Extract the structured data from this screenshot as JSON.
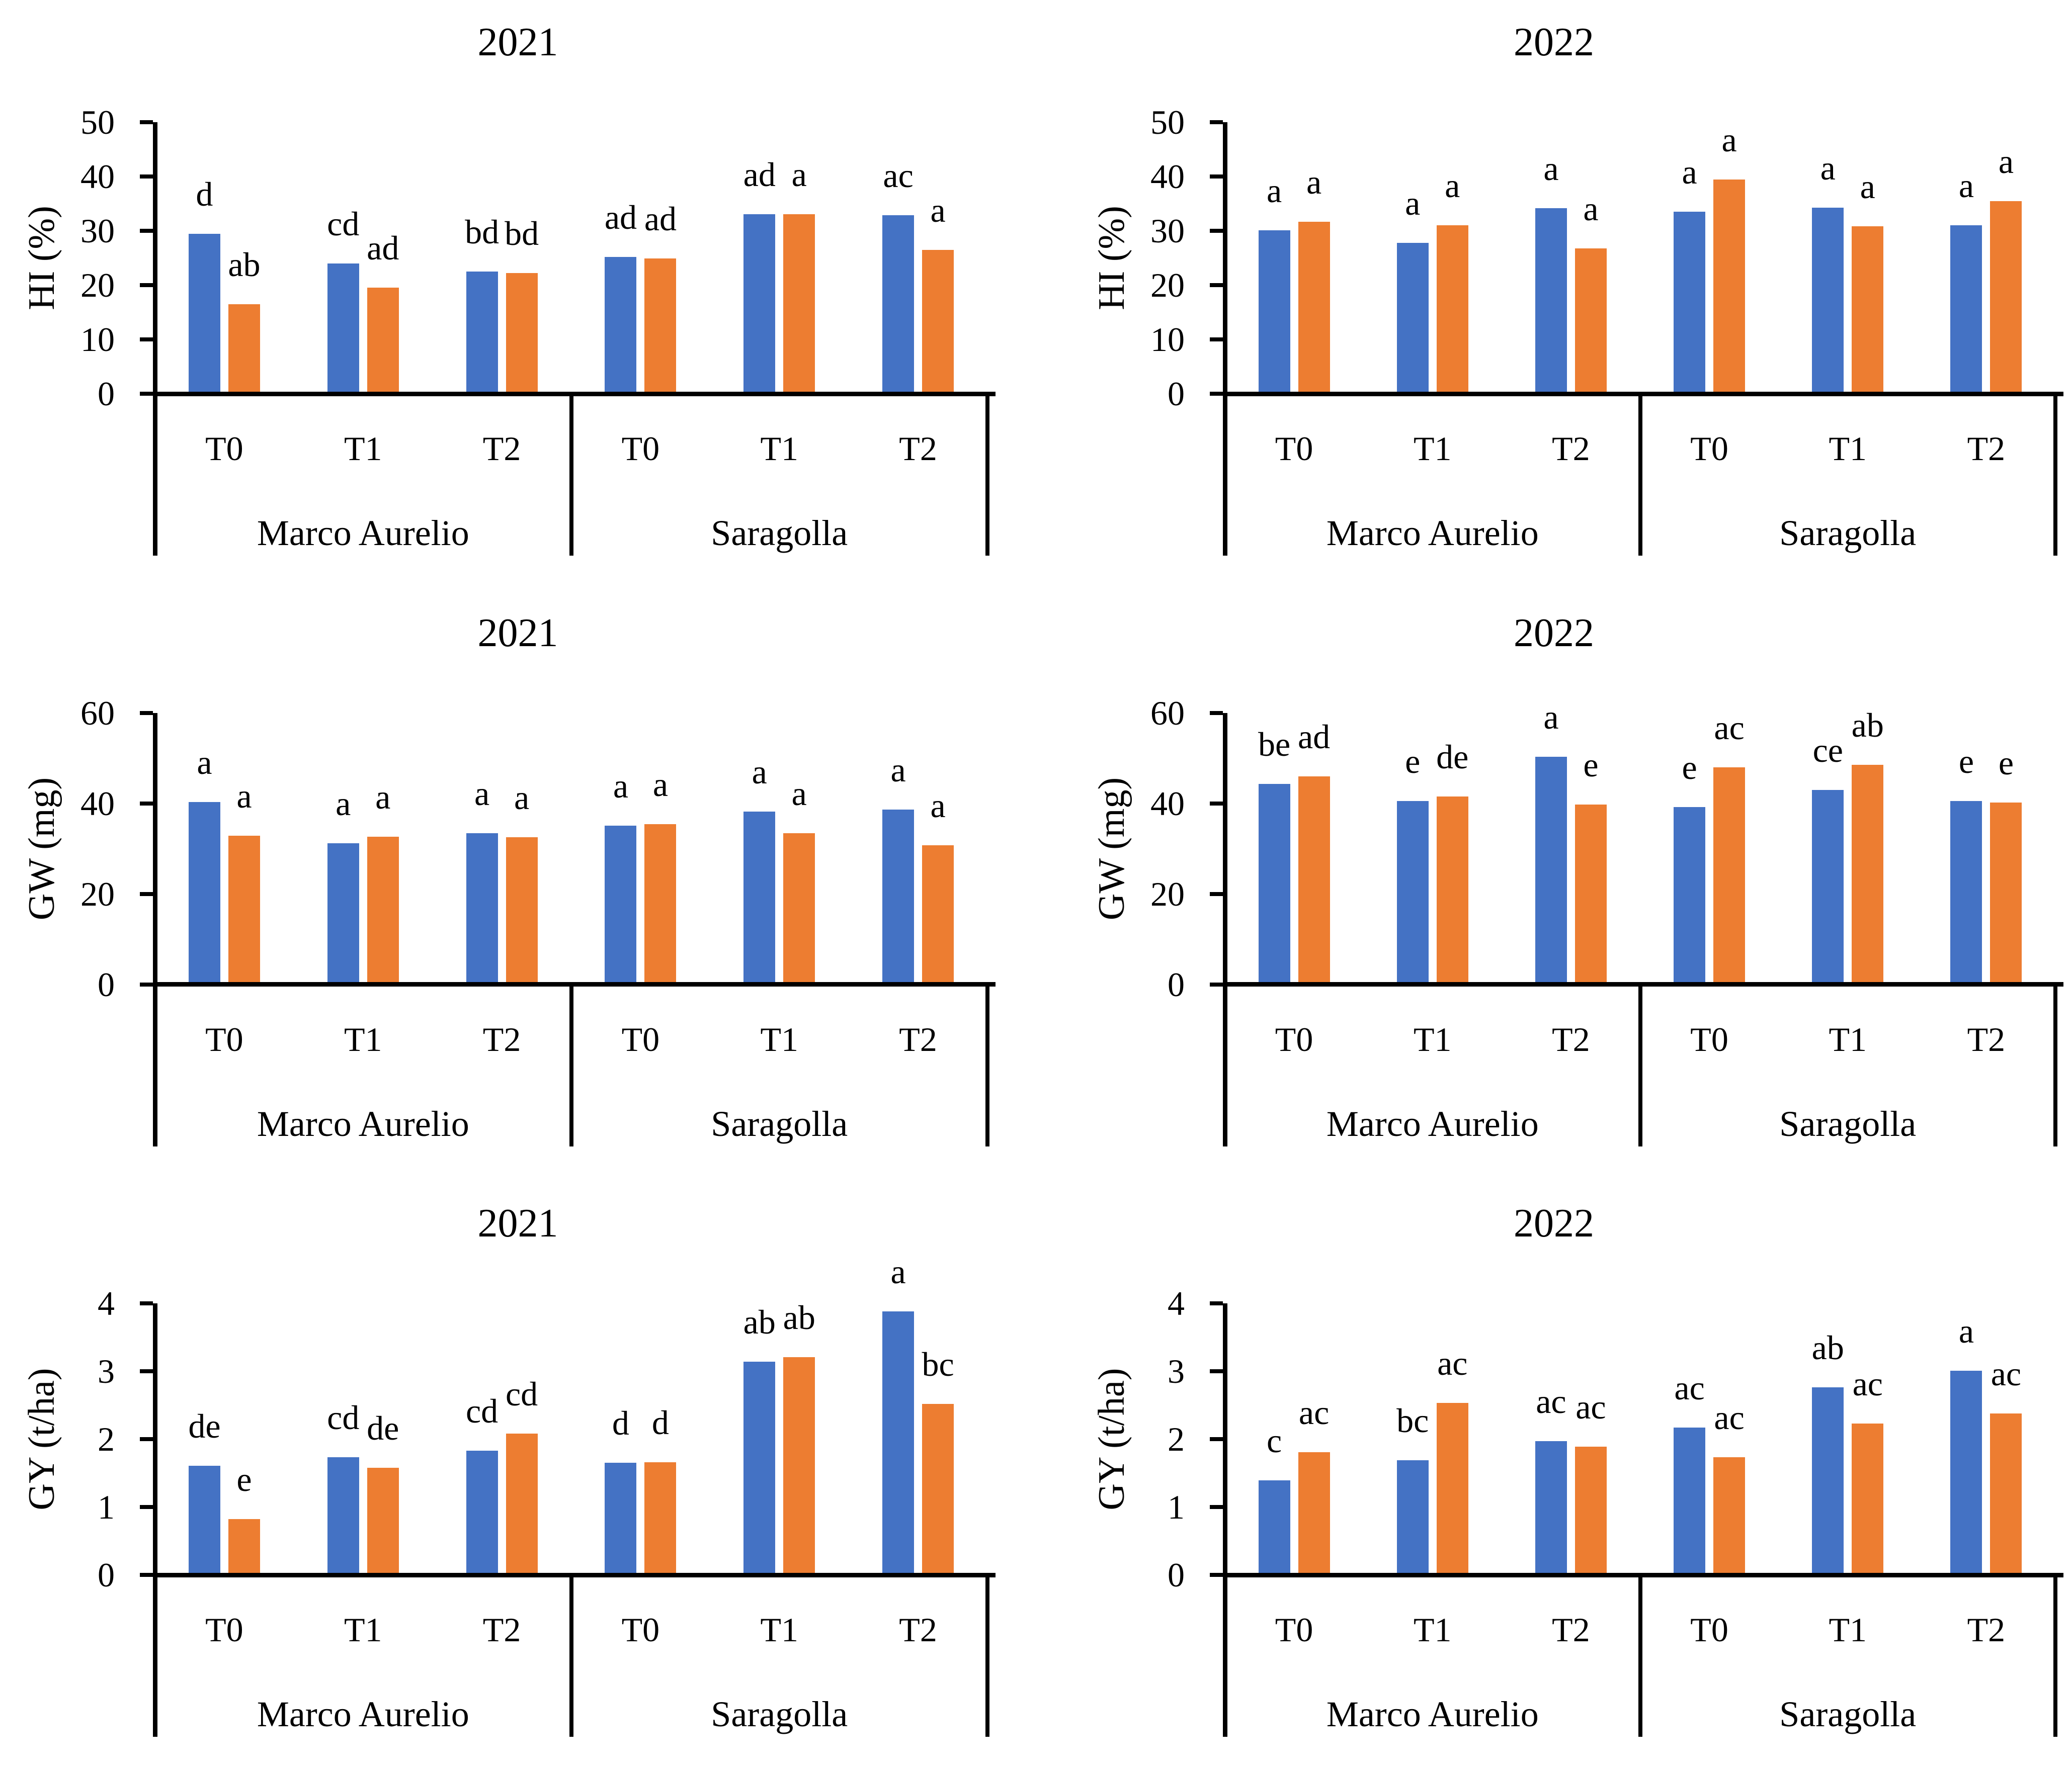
{
  "figure": {
    "background": "#ffffff"
  },
  "colors": {
    "series_blue": "#4472C4",
    "series_orange": "#ED7D31",
    "axis": "#000000",
    "text": "#000000"
  },
  "chart_data": [
    {
      "type": "bar",
      "title": "2021",
      "ylabel": "HI (%)",
      "ylim": [
        0,
        50
      ],
      "yticks": [
        0,
        10,
        20,
        30,
        40,
        50
      ],
      "grid": false,
      "legend": "none",
      "treatments": [
        "T0",
        "T1",
        "T2"
      ],
      "groups": [
        {
          "name": "Marco Aurelio",
          "items": [
            {
              "treatment": "T0",
              "blue": {
                "value": 29.4,
                "letter": "d"
              },
              "orange": {
                "value": 16.5,
                "letter": "ab"
              }
            },
            {
              "treatment": "T1",
              "blue": {
                "value": 24.0,
                "letter": "cd"
              },
              "orange": {
                "value": 19.5,
                "letter": "ad"
              }
            },
            {
              "treatment": "T2",
              "blue": {
                "value": 22.5,
                "letter": "bd"
              },
              "orange": {
                "value": 22.2,
                "letter": "bd"
              }
            }
          ]
        },
        {
          "name": "Saragolla",
          "items": [
            {
              "treatment": "T0",
              "blue": {
                "value": 25.2,
                "letter": "ad"
              },
              "orange": {
                "value": 24.9,
                "letter": "ad"
              }
            },
            {
              "treatment": "T1",
              "blue": {
                "value": 33.1,
                "letter": "ad"
              },
              "orange": {
                "value": 33.1,
                "letter": "a"
              }
            },
            {
              "treatment": "T2",
              "blue": {
                "value": 32.9,
                "letter": "ac"
              },
              "orange": {
                "value": 26.5,
                "letter": "a"
              }
            }
          ]
        }
      ]
    },
    {
      "type": "bar",
      "title": "2022",
      "ylabel": "HI (%)",
      "ylim": [
        0,
        50
      ],
      "yticks": [
        0,
        10,
        20,
        30,
        40,
        50
      ],
      "grid": false,
      "legend": "none",
      "treatments": [
        "T0",
        "T1",
        "T2"
      ],
      "groups": [
        {
          "name": "Marco Aurelio",
          "items": [
            {
              "treatment": "T0",
              "blue": {
                "value": 30.1,
                "letter": "a"
              },
              "orange": {
                "value": 31.7,
                "letter": "a"
              }
            },
            {
              "treatment": "T1",
              "blue": {
                "value": 27.8,
                "letter": "a"
              },
              "orange": {
                "value": 31.0,
                "letter": "a"
              }
            },
            {
              "treatment": "T2",
              "blue": {
                "value": 34.2,
                "letter": "a"
              },
              "orange": {
                "value": 26.8,
                "letter": "a"
              }
            }
          ]
        },
        {
          "name": "Saragolla",
          "items": [
            {
              "treatment": "T0",
              "blue": {
                "value": 33.5,
                "letter": "a"
              },
              "orange": {
                "value": 39.4,
                "letter": "a"
              }
            },
            {
              "treatment": "T1",
              "blue": {
                "value": 34.3,
                "letter": "a"
              },
              "orange": {
                "value": 30.8,
                "letter": "a"
              }
            },
            {
              "treatment": "T2",
              "blue": {
                "value": 31.0,
                "letter": "a"
              },
              "orange": {
                "value": 35.5,
                "letter": "a"
              }
            }
          ]
        }
      ]
    },
    {
      "type": "bar",
      "title": "2021",
      "ylabel": "GW (mg)",
      "ylim": [
        0,
        60
      ],
      "yticks": [
        0,
        20,
        40,
        60
      ],
      "grid": false,
      "legend": "none",
      "treatments": [
        "T0",
        "T1",
        "T2"
      ],
      "groups": [
        {
          "name": "Marco Aurelio",
          "items": [
            {
              "treatment": "T0",
              "blue": {
                "value": 40.3,
                "letter": "a"
              },
              "orange": {
                "value": 32.9,
                "letter": "a"
              }
            },
            {
              "treatment": "T1",
              "blue": {
                "value": 31.2,
                "letter": "a"
              },
              "orange": {
                "value": 32.7,
                "letter": "a"
              }
            },
            {
              "treatment": "T2",
              "blue": {
                "value": 33.4,
                "letter": "a"
              },
              "orange": {
                "value": 32.6,
                "letter": "a"
              }
            }
          ]
        },
        {
          "name": "Saragolla",
          "items": [
            {
              "treatment": "T0",
              "blue": {
                "value": 35.1,
                "letter": "a"
              },
              "orange": {
                "value": 35.4,
                "letter": "a"
              }
            },
            {
              "treatment": "T1",
              "blue": {
                "value": 38.2,
                "letter": "a"
              },
              "orange": {
                "value": 33.4,
                "letter": "a"
              }
            },
            {
              "treatment": "T2",
              "blue": {
                "value": 38.7,
                "letter": "a"
              },
              "orange": {
                "value": 30.8,
                "letter": "a"
              }
            }
          ]
        }
      ]
    },
    {
      "type": "bar",
      "title": "2022",
      "ylabel": "GW (mg)",
      "ylim": [
        0,
        60
      ],
      "yticks": [
        0,
        20,
        40,
        60
      ],
      "grid": false,
      "legend": "none",
      "treatments": [
        "T0",
        "T1",
        "T2"
      ],
      "groups": [
        {
          "name": "Marco Aurelio",
          "items": [
            {
              "treatment": "T0",
              "blue": {
                "value": 44.3,
                "letter": "be"
              },
              "orange": {
                "value": 46.0,
                "letter": "ad"
              }
            },
            {
              "treatment": "T1",
              "blue": {
                "value": 40.6,
                "letter": "e"
              },
              "orange": {
                "value": 41.6,
                "letter": "de"
              }
            },
            {
              "treatment": "T2",
              "blue": {
                "value": 50.3,
                "letter": "a"
              },
              "orange": {
                "value": 39.8,
                "letter": "e"
              }
            }
          ]
        },
        {
          "name": "Saragolla",
          "items": [
            {
              "treatment": "T0",
              "blue": {
                "value": 39.2,
                "letter": "e"
              },
              "orange": {
                "value": 48.0,
                "letter": "ac"
              }
            },
            {
              "treatment": "T1",
              "blue": {
                "value": 43.0,
                "letter": "ce"
              },
              "orange": {
                "value": 48.5,
                "letter": "ab"
              }
            },
            {
              "treatment": "T2",
              "blue": {
                "value": 40.6,
                "letter": "e"
              },
              "orange": {
                "value": 40.2,
                "letter": "e"
              }
            }
          ]
        }
      ]
    },
    {
      "type": "bar",
      "title": "2021",
      "ylabel": "GY (t/ha)",
      "ylim": [
        0,
        4
      ],
      "yticks": [
        0,
        1,
        2,
        3,
        4
      ],
      "grid": false,
      "legend": "none",
      "treatments": [
        "T0",
        "T1",
        "T2"
      ],
      "groups": [
        {
          "name": "Marco Aurelio",
          "items": [
            {
              "treatment": "T0",
              "blue": {
                "value": 1.61,
                "letter": "de"
              },
              "orange": {
                "value": 0.82,
                "letter": "e"
              }
            },
            {
              "treatment": "T1",
              "blue": {
                "value": 1.73,
                "letter": "cd"
              },
              "orange": {
                "value": 1.58,
                "letter": "de"
              }
            },
            {
              "treatment": "T2",
              "blue": {
                "value": 1.83,
                "letter": "cd"
              },
              "orange": {
                "value": 2.08,
                "letter": "cd"
              }
            }
          ]
        },
        {
          "name": "Saragolla",
          "items": [
            {
              "treatment": "T0",
              "blue": {
                "value": 1.65,
                "letter": "d"
              },
              "orange": {
                "value": 1.66,
                "letter": "d"
              }
            },
            {
              "treatment": "T1",
              "blue": {
                "value": 3.14,
                "letter": "ab"
              },
              "orange": {
                "value": 3.21,
                "letter": "ab"
              }
            },
            {
              "treatment": "T2",
              "blue": {
                "value": 3.88,
                "letter": "a"
              },
              "orange": {
                "value": 2.52,
                "letter": "bc"
              }
            }
          ]
        }
      ]
    },
    {
      "type": "bar",
      "title": "2022",
      "ylabel": "GY (t/ha)",
      "ylim": [
        0,
        4
      ],
      "yticks": [
        0,
        1,
        2,
        3,
        4
      ],
      "grid": false,
      "legend": "none",
      "treatments": [
        "T0",
        "T1",
        "T2"
      ],
      "groups": [
        {
          "name": "Marco Aurelio",
          "items": [
            {
              "treatment": "T0",
              "blue": {
                "value": 1.39,
                "letter": "c"
              },
              "orange": {
                "value": 1.81,
                "letter": "ac"
              }
            },
            {
              "treatment": "T1",
              "blue": {
                "value": 1.69,
                "letter": "bc"
              },
              "orange": {
                "value": 2.53,
                "letter": "ac"
              }
            },
            {
              "treatment": "T2",
              "blue": {
                "value": 1.97,
                "letter": "ac"
              },
              "orange": {
                "value": 1.89,
                "letter": "ac"
              }
            }
          ]
        },
        {
          "name": "Saragolla",
          "items": [
            {
              "treatment": "T0",
              "blue": {
                "value": 2.17,
                "letter": "ac"
              },
              "orange": {
                "value": 1.73,
                "letter": "ac"
              }
            },
            {
              "treatment": "T1",
              "blue": {
                "value": 2.76,
                "letter": "ab"
              },
              "orange": {
                "value": 2.23,
                "letter": "ac"
              }
            },
            {
              "treatment": "T2",
              "blue": {
                "value": 3.01,
                "letter": "a"
              },
              "orange": {
                "value": 2.38,
                "letter": "ac"
              }
            }
          ]
        }
      ]
    }
  ]
}
